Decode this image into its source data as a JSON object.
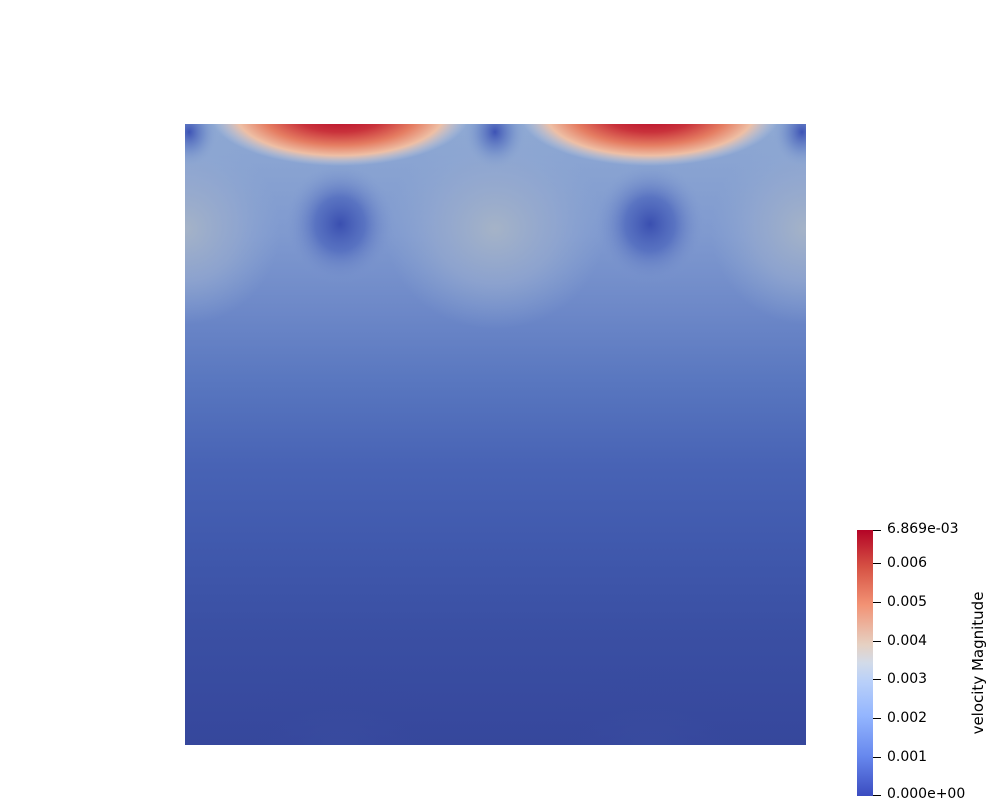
{
  "colorbar": {
    "title": "velocity Magnitude",
    "max_label": "6.869e-03",
    "min_label": "0.000e+00",
    "range": [
      0.0,
      0.006869
    ],
    "ticks": [
      {
        "value": 0.006869,
        "label": "6.869e-03"
      },
      {
        "value": 0.006,
        "label": "0.006"
      },
      {
        "value": 0.005,
        "label": "0.005"
      },
      {
        "value": 0.004,
        "label": "0.004"
      },
      {
        "value": 0.003,
        "label": "0.003"
      },
      {
        "value": 0.002,
        "label": "0.002"
      },
      {
        "value": 0.001,
        "label": "0.001"
      },
      {
        "value": 0.0,
        "label": "0.000e+00"
      }
    ],
    "colormap": "Cool to Warm",
    "colors": {
      "low": "#3b4cc0",
      "mid": "#dddddd",
      "high": "#b40426"
    }
  }
}
